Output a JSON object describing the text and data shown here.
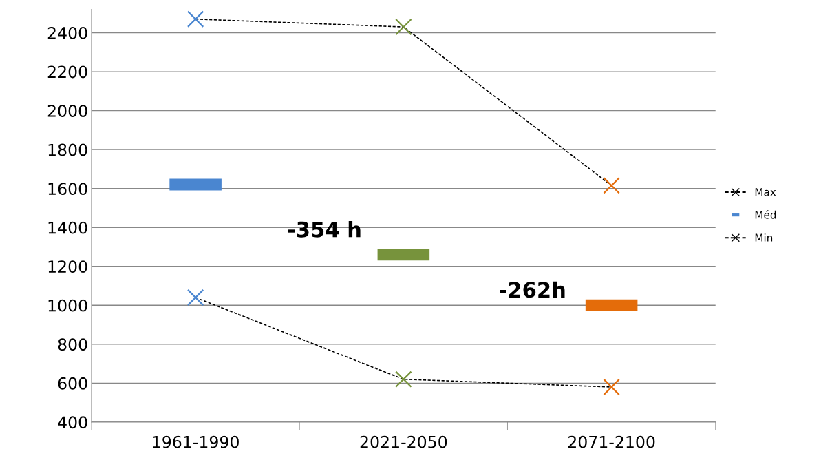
{
  "chart_data": {
    "type": "line",
    "categories": [
      "1961-1990",
      "2021-2050",
      "2071-2100"
    ],
    "series": [
      {
        "name": "Max",
        "color": "#000000",
        "colors": [
          "#4a86d0",
          "#77933c",
          "#e46c0a"
        ],
        "marker": "cross",
        "line_style": "dashed",
        "values": [
          2470,
          2430,
          1615
        ]
      },
      {
        "name": "Méd",
        "type": "bar",
        "color": "#4a86d0",
        "colors": [
          "#4a86d0",
          "#77933c",
          "#e46c0a"
        ],
        "base": [
          1590,
          1230,
          970
        ],
        "values": [
          60,
          60,
          60
        ]
      },
      {
        "name": "Min",
        "color": "#000000",
        "colors": [
          "#4a86d0",
          "#77933c",
          "#e46c0a"
        ],
        "marker": "cross",
        "line_style": "dashed",
        "values": [
          1040,
          620,
          580
        ]
      }
    ],
    "annotations": [
      "-354 h",
      "-262h"
    ],
    "ylim": [
      400,
      2520
    ],
    "yticks": [
      400,
      600,
      800,
      1000,
      1200,
      1400,
      1600,
      1800,
      2000,
      2200,
      2400
    ],
    "grid": "y",
    "legend": "right"
  }
}
